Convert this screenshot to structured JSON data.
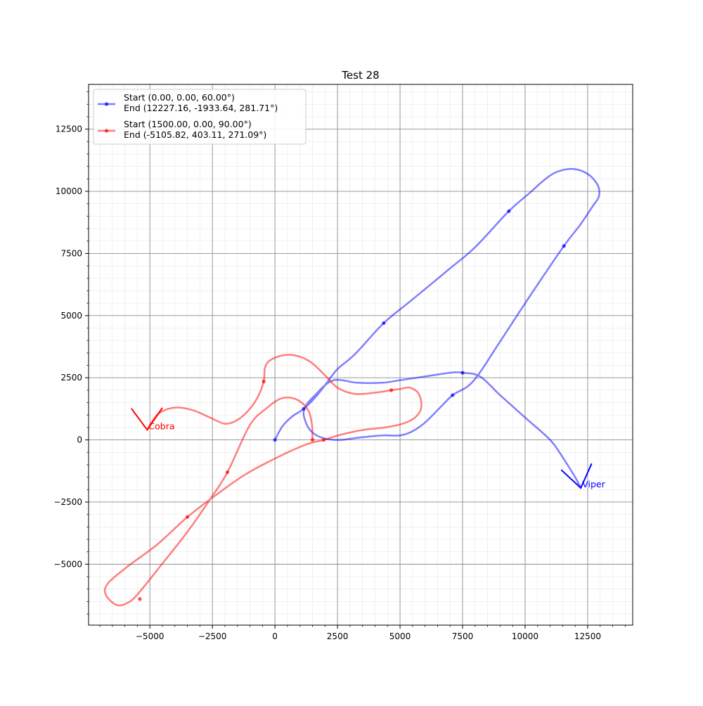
{
  "chart_data": {
    "type": "line",
    "title": "Test 28",
    "xlabel": "",
    "ylabel": "",
    "xlim": [
      -7450,
      14300
    ],
    "ylim": [
      -7450,
      14300
    ],
    "xticks": [
      -5000,
      -2500,
      0,
      2500,
      5000,
      7500,
      10000,
      12500
    ],
    "yticks": [
      -5000,
      -2500,
      0,
      2500,
      5000,
      7500,
      10000,
      12500
    ],
    "xtick_labels": [
      "−5000",
      "−2500",
      "0",
      "2500",
      "5000",
      "7500",
      "10000",
      "12500"
    ],
    "ytick_labels": [
      "−5000",
      "−2500",
      "0",
      "2500",
      "5000",
      "7500",
      "10000",
      "12500"
    ],
    "grid": true,
    "minor_grid": true,
    "legend_position": "top-left",
    "series": [
      {
        "name": "Start (0.00, 0.00, 60.00°)\n End  (12227.16, -1933.64, 281.71°)",
        "legend_lines": [
          "Start (0.00, 0.00, 60.00°)",
          " End  (12227.16, -1933.64, 281.71°)"
        ],
        "color": "#0000ff",
        "end_label": "Viper",
        "end_heading_deg": 281.71,
        "points": [
          [
            0,
            0
          ],
          [
            300,
            550
          ],
          [
            700,
            950
          ],
          [
            1150,
            1250
          ],
          [
            1600,
            1700
          ],
          [
            2000,
            2200
          ],
          [
            2500,
            2850
          ],
          [
            3200,
            3450
          ],
          [
            4350,
            4700
          ],
          [
            5500,
            5650
          ],
          [
            7000,
            6900
          ],
          [
            8000,
            7750
          ],
          [
            9350,
            9200
          ],
          [
            10200,
            9950
          ],
          [
            10700,
            10400
          ],
          [
            11200,
            10750
          ],
          [
            11900,
            10900
          ],
          [
            12500,
            10700
          ],
          [
            12900,
            10250
          ],
          [
            12950,
            9800
          ],
          [
            12700,
            9400
          ],
          [
            12200,
            8650
          ],
          [
            11550,
            7800
          ],
          [
            10200,
            5800
          ],
          [
            8900,
            3800
          ],
          [
            8150,
            2650
          ],
          [
            7700,
            2150
          ],
          [
            7100,
            1800
          ],
          [
            6600,
            1300
          ],
          [
            6000,
            700
          ],
          [
            5500,
            350
          ],
          [
            5000,
            180
          ],
          [
            4300,
            180
          ],
          [
            3400,
            100
          ],
          [
            2600,
            0
          ],
          [
            1900,
            80
          ],
          [
            1400,
            400
          ],
          [
            1150,
            1000
          ],
          [
            1250,
            1400
          ],
          [
            1600,
            1800
          ],
          [
            2000,
            2200
          ],
          [
            2350,
            2400
          ],
          [
            2700,
            2400
          ],
          [
            3300,
            2300
          ],
          [
            4300,
            2300
          ],
          [
            5000,
            2400
          ],
          [
            6000,
            2550
          ],
          [
            7000,
            2700
          ],
          [
            7500,
            2700
          ],
          [
            8200,
            2550
          ],
          [
            9000,
            1800
          ],
          [
            10000,
            900
          ],
          [
            11000,
            0
          ],
          [
            11500,
            -700
          ],
          [
            12000,
            -1500
          ],
          [
            12227,
            -1934
          ]
        ],
        "markers": [
          [
            0,
            0
          ],
          [
            1150,
            1250
          ],
          [
            4350,
            4700
          ],
          [
            9350,
            9200
          ],
          [
            11550,
            7800
          ],
          [
            7500,
            2700
          ],
          [
            7100,
            1800
          ]
        ]
      },
      {
        "name": "Start (1500.00, 0.00, 90.00°)\n End  (-5105.82, 403.11, 271.09°)",
        "legend_lines": [
          "Start (1500.00, 0.00, 90.00°)",
          " End  (-5105.82, 403.11, 271.09°)"
        ],
        "color": "#ff0000",
        "end_label": "Cobra",
        "end_heading_deg": 271.09,
        "points": [
          [
            1500,
            0
          ],
          [
            1480,
            600
          ],
          [
            1350,
            1150
          ],
          [
            1000,
            1550
          ],
          [
            600,
            1700
          ],
          [
            200,
            1650
          ],
          [
            -300,
            1300
          ],
          [
            -1000,
            600
          ],
          [
            -1900,
            -1300
          ],
          [
            -2600,
            -2400
          ],
          [
            -3500,
            -3700
          ],
          [
            -4600,
            -5100
          ],
          [
            -5400,
            -6100
          ],
          [
            -5800,
            -6500
          ],
          [
            -6300,
            -6650
          ],
          [
            -6750,
            -6250
          ],
          [
            -6700,
            -5800
          ],
          [
            -5900,
            -5100
          ],
          [
            -4700,
            -4200
          ],
          [
            -3500,
            -3100
          ],
          [
            -2400,
            -2250
          ],
          [
            -1200,
            -1400
          ],
          [
            0,
            -750
          ],
          [
            1200,
            -200
          ],
          [
            1950,
            0
          ],
          [
            2600,
            200
          ],
          [
            3500,
            400
          ],
          [
            4400,
            500
          ],
          [
            5100,
            650
          ],
          [
            5600,
            900
          ],
          [
            5850,
            1300
          ],
          [
            5750,
            1850
          ],
          [
            5400,
            2100
          ],
          [
            5000,
            2050
          ],
          [
            4650,
            2000
          ],
          [
            4000,
            1900
          ],
          [
            3200,
            1850
          ],
          [
            2500,
            2100
          ],
          [
            2000,
            2600
          ],
          [
            1400,
            3150
          ],
          [
            800,
            3400
          ],
          [
            300,
            3400
          ],
          [
            -200,
            3200
          ],
          [
            -400,
            2900
          ],
          [
            -450,
            2350
          ],
          [
            -700,
            1700
          ],
          [
            -1050,
            1200
          ],
          [
            -1500,
            800
          ],
          [
            -2000,
            650
          ],
          [
            -2600,
            900
          ],
          [
            -3300,
            1200
          ],
          [
            -4000,
            1300
          ],
          [
            -4600,
            1100
          ],
          [
            -4900,
            750
          ],
          [
            -5106,
            403
          ]
        ],
        "markers": [
          [
            1500,
            0
          ],
          [
            1950,
            0
          ],
          [
            4650,
            2000
          ],
          [
            -450,
            2350
          ],
          [
            -1900,
            -1300
          ],
          [
            -3500,
            -3100
          ],
          [
            -5400,
            -6400
          ]
        ]
      }
    ]
  }
}
